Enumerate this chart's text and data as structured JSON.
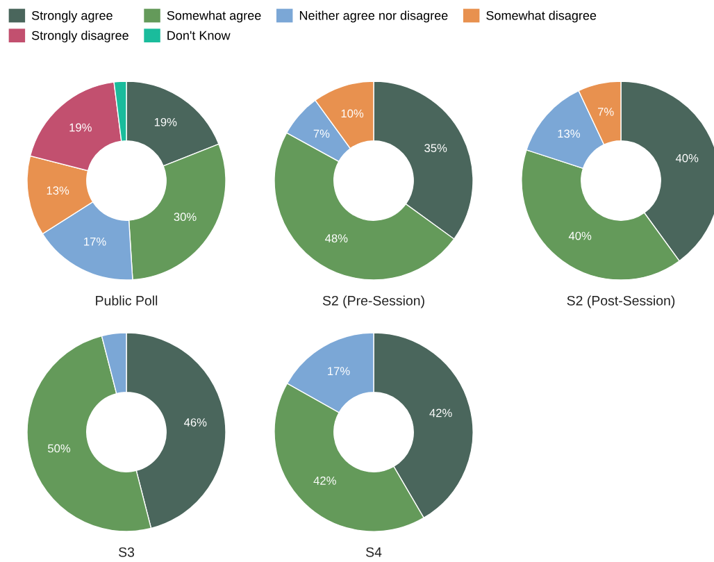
{
  "chart_data": [
    {
      "type": "donut",
      "title": "Public Poll",
      "legend": "top",
      "categories": [
        "Strongly agree",
        "Somewhat agree",
        "Neither agree nor disagree",
        "Somewhat disagree",
        "Strongly disagree",
        "Don't Know"
      ],
      "values": [
        19,
        30,
        17,
        13,
        19,
        2
      ],
      "colors": [
        "#4a665c",
        "#649a5a",
        "#7ba7d6",
        "#e8914f",
        "#c2506f",
        "#1abc9c"
      ],
      "value_labels": [
        "19%",
        "30%",
        "17%",
        "13%",
        "19%",
        null
      ]
    },
    {
      "type": "donut",
      "title": "S2 (Pre-Session)",
      "categories": [
        null,
        null,
        null,
        null
      ],
      "values": [
        35,
        48,
        7,
        10
      ],
      "colors": [
        "#4a665c",
        "#649a5a",
        "#7ba7d6",
        "#e8914f"
      ],
      "value_labels": [
        "35%",
        "48%",
        "7%",
        "10%"
      ]
    },
    {
      "type": "donut",
      "title": "S2 (Post-Session)",
      "categories": [
        null,
        null,
        null,
        null
      ],
      "values": [
        40,
        40,
        13,
        7
      ],
      "colors": [
        "#4a665c",
        "#649a5a",
        "#7ba7d6",
        "#e8914f"
      ],
      "value_labels": [
        "40%",
        "40%",
        "13%",
        "7%"
      ]
    },
    {
      "type": "donut",
      "title": "S3",
      "categories": [
        null,
        null,
        null
      ],
      "values": [
        46,
        50,
        4
      ],
      "colors": [
        "#4a665c",
        "#649a5a",
        "#7ba7d6"
      ],
      "value_labels": [
        "46%",
        "50%",
        null
      ]
    },
    {
      "type": "donut",
      "title": "S4",
      "categories": [
        null,
        null,
        null
      ],
      "values": [
        42,
        42,
        17
      ],
      "colors": [
        "#4a665c",
        "#649a5a",
        "#7ba7d6"
      ],
      "value_labels": [
        "42%",
        "42%",
        "17%"
      ]
    }
  ]
}
